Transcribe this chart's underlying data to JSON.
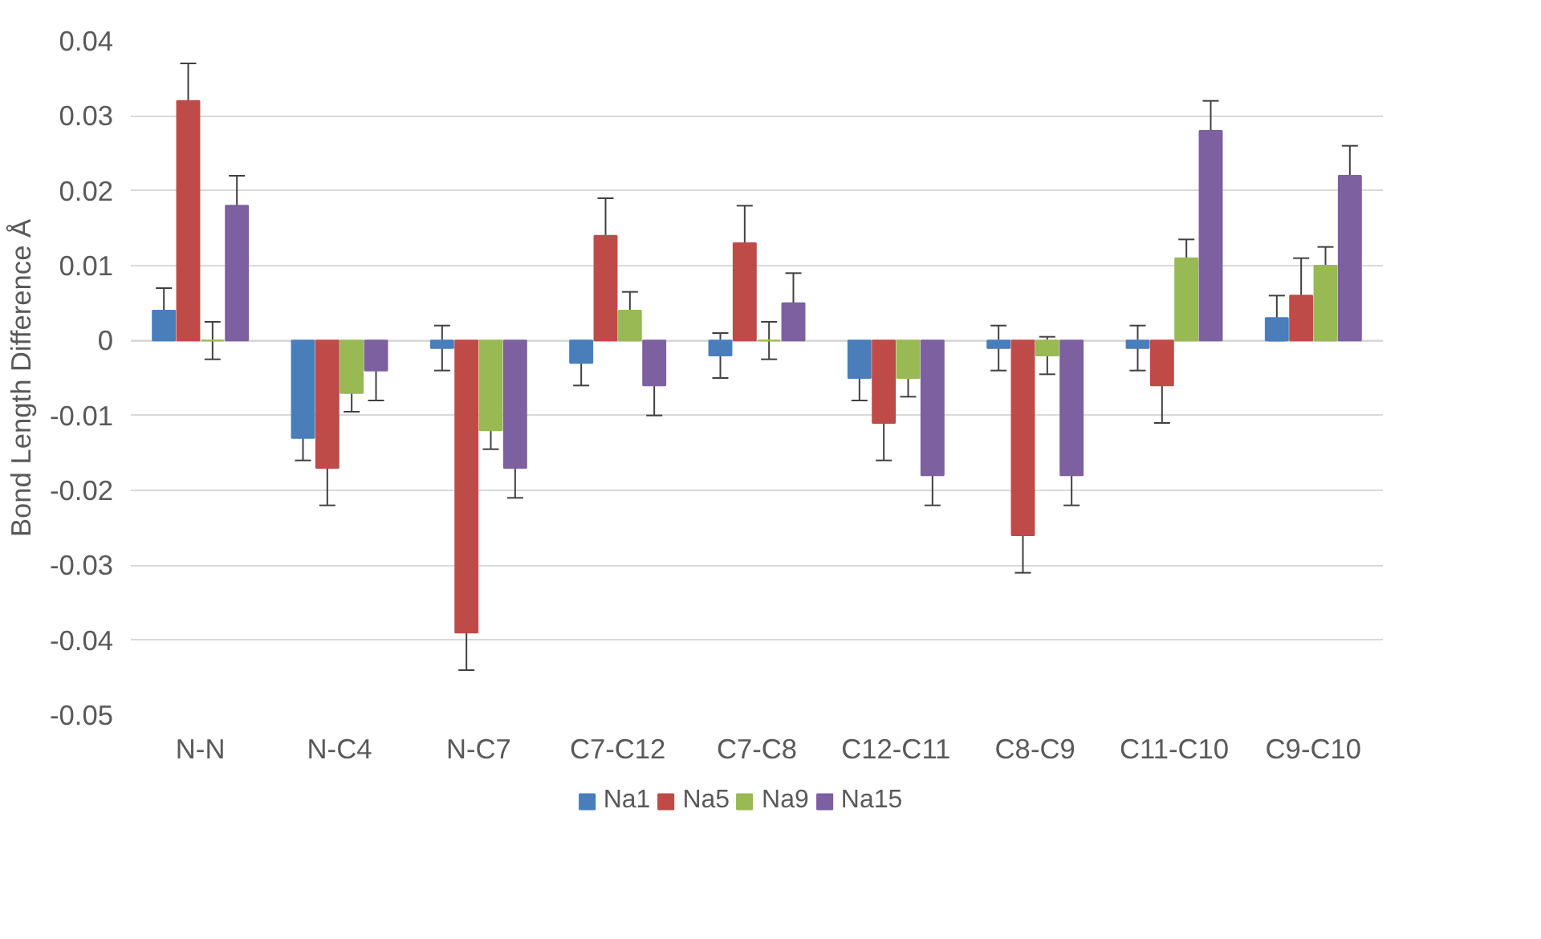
{
  "chart_data": {
    "type": "bar",
    "ylabel": "Bond Length Difference Å",
    "categories": [
      "N-N",
      "N-C4",
      "N-C7",
      "C7-C12",
      "C7-C8",
      "C12-C11",
      "C8-C9",
      "C11-C10",
      "C9-C10"
    ],
    "series": [
      {
        "name": "Na1",
        "color": "#4a7ebb",
        "values": [
          0.004,
          -0.013,
          -0.001,
          -0.003,
          -0.002,
          -0.005,
          -0.001,
          -0.001,
          0.003
        ],
        "errors": [
          0.003,
          0.003,
          0.003,
          0.003,
          0.003,
          0.003,
          0.003,
          0.003,
          0.003
        ]
      },
      {
        "name": "Na5",
        "color": "#be4b48",
        "values": [
          0.032,
          -0.017,
          -0.039,
          0.014,
          0.013,
          -0.011,
          -0.026,
          -0.006,
          0.006
        ],
        "errors": [
          0.005,
          0.005,
          0.005,
          0.005,
          0.005,
          0.005,
          0.005,
          0.005,
          0.005
        ]
      },
      {
        "name": "Na9",
        "color": "#98b954",
        "values": [
          0,
          -0.007,
          -0.012,
          0.004,
          0,
          -0.005,
          -0.002,
          0.011,
          0.01
        ],
        "errors": [
          0.0025,
          0.0025,
          0.0025,
          0.0025,
          0.0025,
          0.0025,
          0.0025,
          0.0025,
          0.0025
        ]
      },
      {
        "name": "Na15",
        "color": "#7d60a0",
        "values": [
          0.018,
          -0.004,
          -0.017,
          -0.006,
          0.005,
          -0.018,
          -0.018,
          0.028,
          0.022
        ],
        "errors": [
          0.004,
          0.004,
          0.004,
          0.004,
          0.004,
          0.004,
          0.004,
          0.004,
          0.004
        ]
      }
    ],
    "ylim": [
      -0.05,
      0.04
    ],
    "yticks": [
      -0.05,
      -0.04,
      -0.03,
      -0.02,
      -0.01,
      0,
      0.01,
      0.02,
      0.03,
      0.04
    ],
    "grid": "y",
    "legend": "bottom"
  }
}
